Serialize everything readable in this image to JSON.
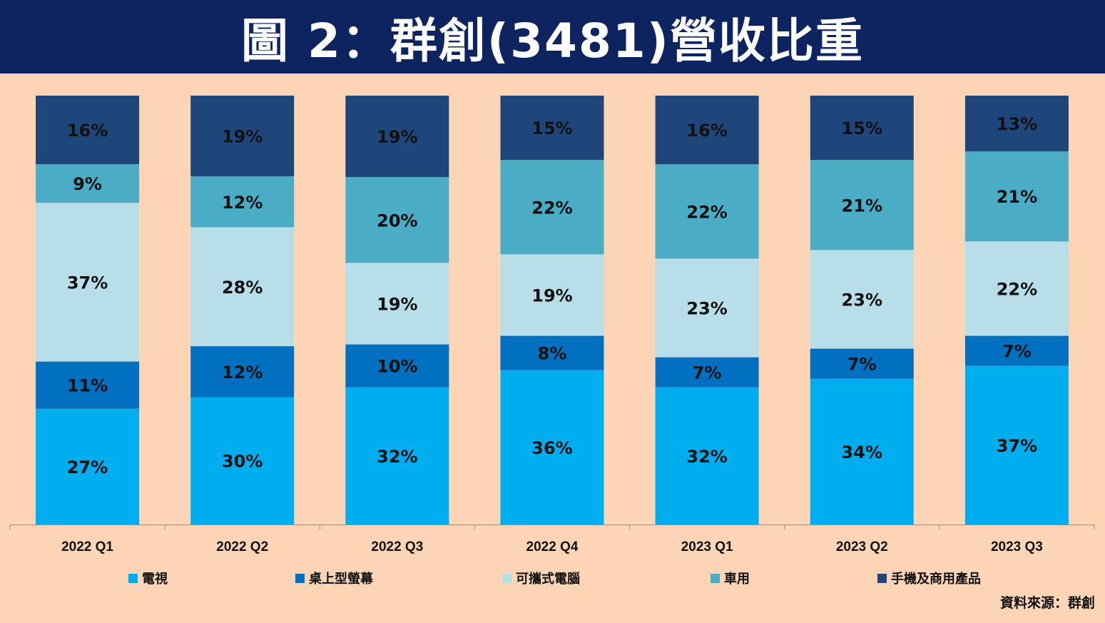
{
  "title": "圖 2：群創(3481)營收比重",
  "source": "資料來源：群創",
  "colors": {
    "background": "#FBD5B6",
    "title_bar": "#0D2461",
    "title_text": "#FFFFFF"
  },
  "chart_data": {
    "type": "bar",
    "stacked": true,
    "percent_stacked": true,
    "categories": [
      "2022 Q1",
      "2022 Q2",
      "2022 Q3",
      "2022 Q4",
      "2023 Q1",
      "2023 Q2",
      "2023 Q3"
    ],
    "series": [
      {
        "name": "電視",
        "color": "#00AEEF",
        "values": [
          27,
          30,
          32,
          36,
          32,
          34,
          37
        ]
      },
      {
        "name": "桌上型螢幕",
        "color": "#0270C0",
        "values": [
          11,
          12,
          10,
          8,
          7,
          7,
          7
        ]
      },
      {
        "name": "可攜式電腦",
        "color": "#B8DEE9",
        "values": [
          37,
          28,
          19,
          19,
          23,
          23,
          22
        ]
      },
      {
        "name": "車用",
        "color": "#4BACC6",
        "values": [
          9,
          12,
          20,
          22,
          22,
          21,
          21
        ]
      },
      {
        "name": "手機及商用產品",
        "color": "#1F467A",
        "values": [
          16,
          19,
          19,
          15,
          16,
          15,
          13
        ]
      }
    ],
    "ylim": [
      0,
      100
    ],
    "legend_position": "bottom",
    "grid": false
  }
}
